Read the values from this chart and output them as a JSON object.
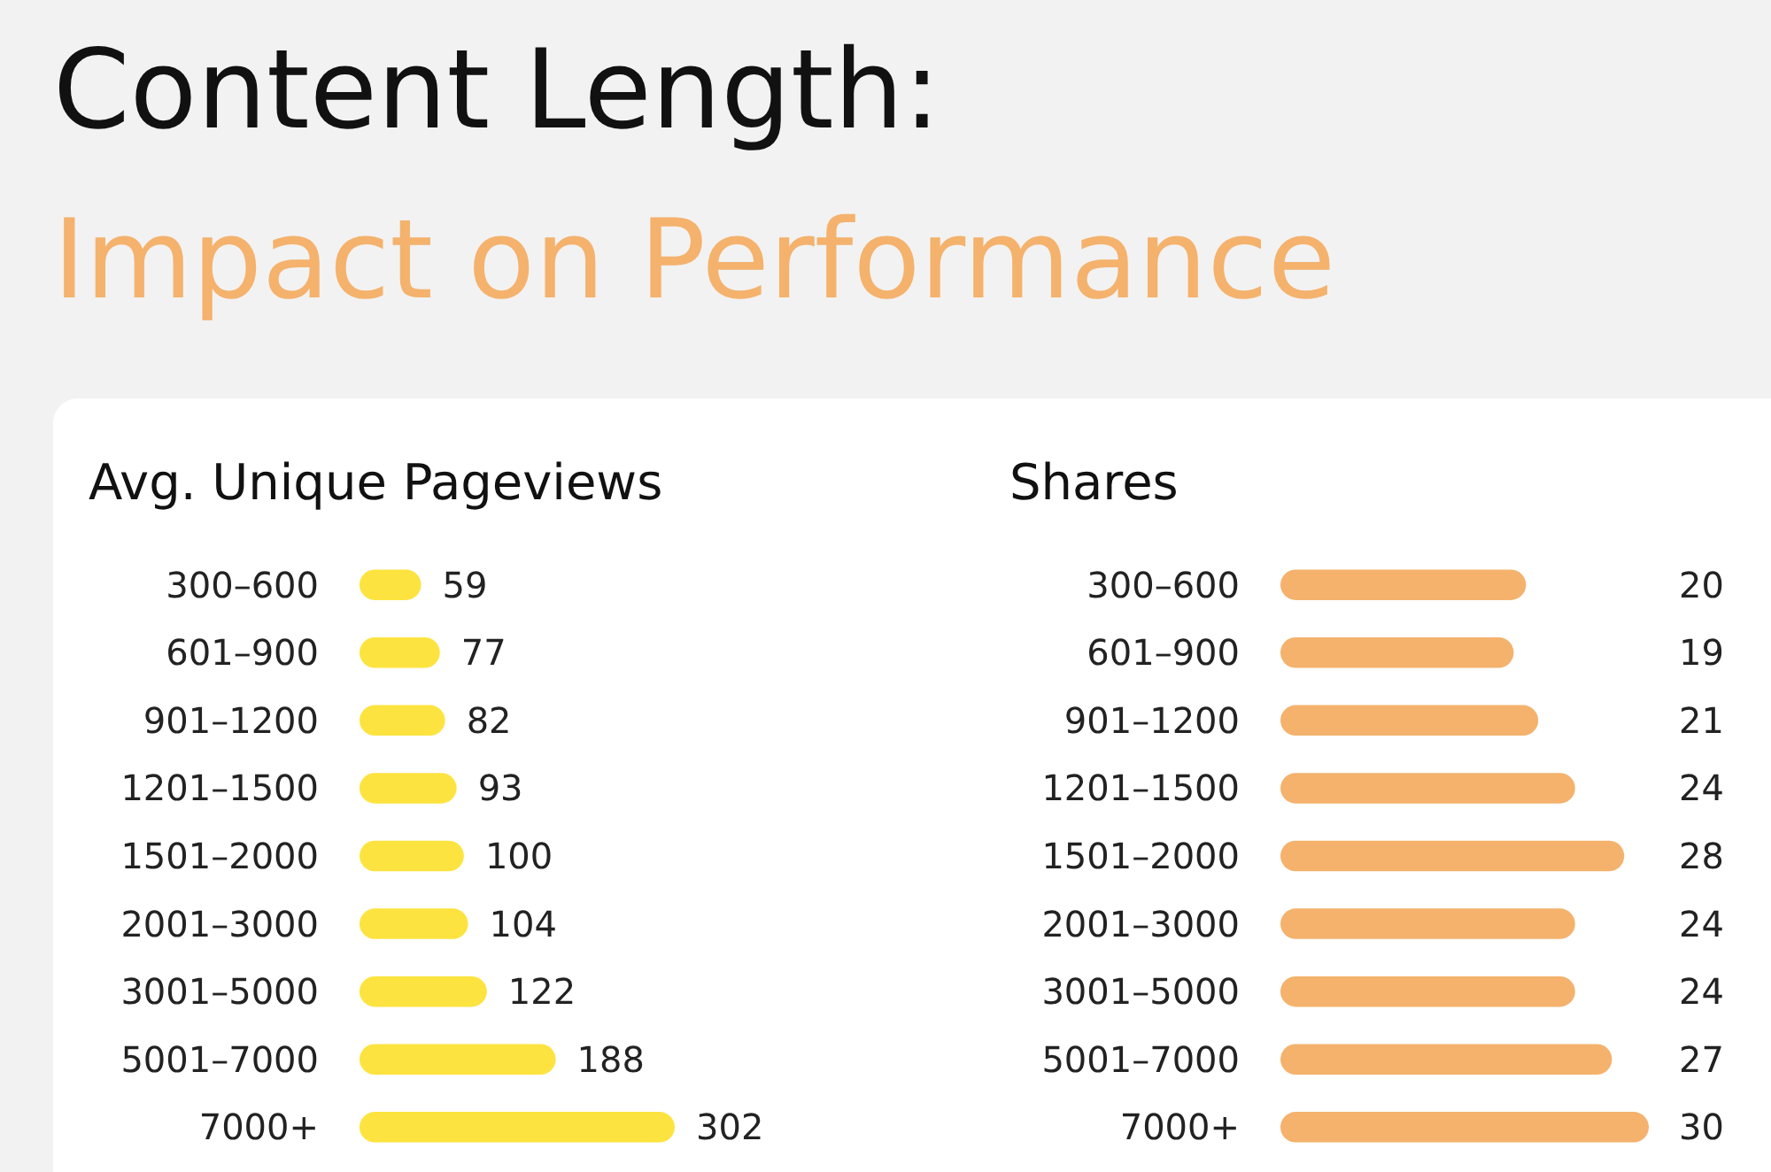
{
  "chart_data": [
    {
      "type": "other",
      "title": "Content Length:",
      "subtitle": "Impact on Performance"
    },
    {
      "type": "bar",
      "orientation": "horizontal",
      "title": "Avg. Unique Pageviews",
      "categories": [
        "300–600",
        "601–900",
        "901–1200",
        "1201–1500",
        "1501–2000",
        "2001–3000",
        "3001–5000",
        "5001–7000",
        "7000+"
      ],
      "values": [
        59,
        77,
        82,
        93,
        100,
        104,
        122,
        188,
        302
      ],
      "color": "#fde33f",
      "data_labels": true
    },
    {
      "type": "bar",
      "orientation": "horizontal",
      "title": "Shares",
      "categories": [
        "300–600",
        "601–900",
        "901–1200",
        "1201–1500",
        "1501–2000",
        "2001–3000",
        "3001–5000",
        "5001–7000",
        "7000+"
      ],
      "values": [
        20,
        19,
        21,
        24,
        28,
        24,
        24,
        27,
        30
      ],
      "color": "#f4b26d",
      "data_labels": true
    }
  ]
}
